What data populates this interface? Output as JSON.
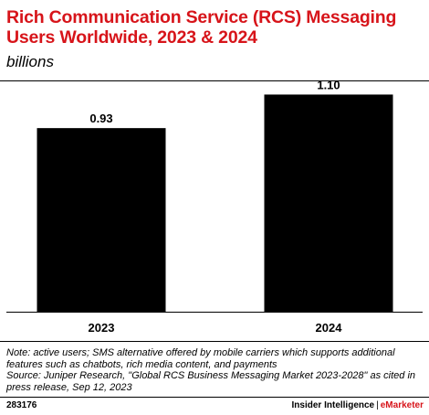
{
  "colors": {
    "title": "#d7141a",
    "bar": "#000000",
    "brand_accent": "#d7141a"
  },
  "chart_data": {
    "type": "bar",
    "title": "Rich Communication Service (RCS) Messaging Users Worldwide, 2023 & 2024",
    "subtitle": "billions",
    "categories": [
      "2023",
      "2024"
    ],
    "values": [
      0.93,
      1.1
    ],
    "value_labels": [
      "0.93",
      "1.10"
    ],
    "ylim": [
      0,
      1.19
    ],
    "grid": false,
    "legend": "none"
  },
  "note": "Note: active users; SMS alternative offered by mobile carriers which supports additional features such as chatbots, rich media content, and payments",
  "source": "Source: Juniper Research, \"Global RCS Business Messaging Market 2023-2028\" as cited in press release, Sep 12, 2023",
  "footer": {
    "id": "283176",
    "brand_main": "Insider Intelligence",
    "brand_separator": "|",
    "brand_accent": "eMarketer"
  }
}
